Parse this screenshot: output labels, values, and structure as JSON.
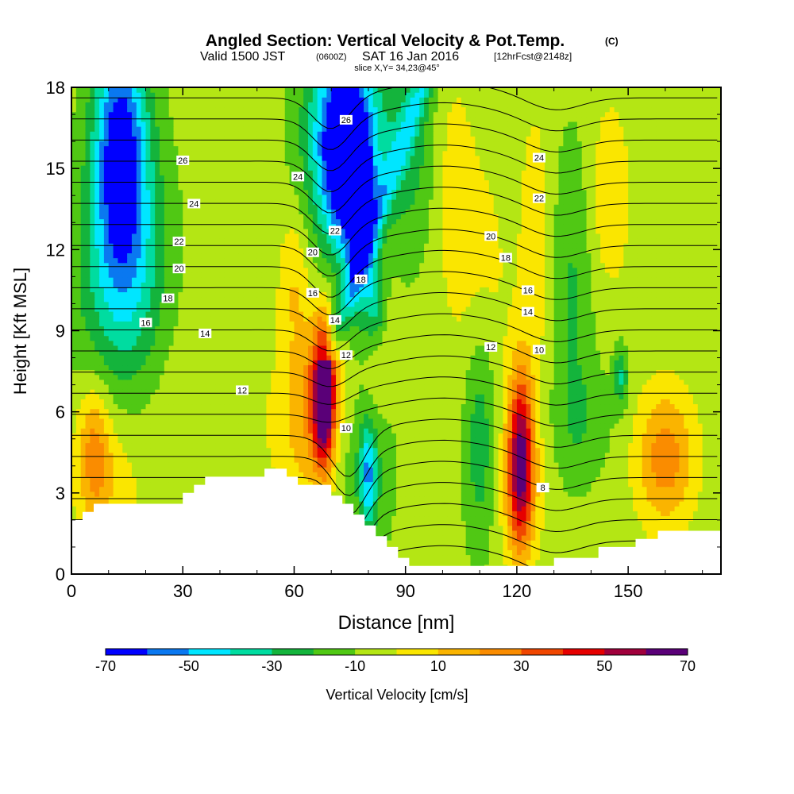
{
  "chart_data": {
    "type": "heatmap",
    "title": "Angled Section: Vertical Velocity & Pot.Temp.",
    "title_unit": "(C)",
    "subtitle_a": "Valid 1500 JST",
    "subtitle_b": "(0600Z)",
    "subtitle_c": "SAT 16 Jan 2016",
    "subtitle_d": "[12hrFcst@2148z]",
    "slice_label": "slice X,Y= 34,23@45°",
    "xlabel": "Distance [nm]",
    "ylabel": "Height [Kft MSL]",
    "xlim": [
      0,
      175
    ],
    "ylim": [
      0,
      18
    ],
    "x_ticks": [
      0,
      30,
      60,
      90,
      120,
      150
    ],
    "y_ticks": [
      0,
      3,
      6,
      9,
      12,
      15,
      18
    ],
    "colorbar": {
      "label": "Vertical Velocity [cm/s]",
      "tick_labels": [
        -70,
        -50,
        -30,
        -10,
        10,
        30,
        50,
        70
      ],
      "bounds": [
        -70,
        -60,
        -50,
        -40,
        -30,
        -20,
        -10,
        0,
        10,
        20,
        30,
        40,
        50,
        60,
        70
      ],
      "colors": [
        "#0000ff",
        "#0a78f0",
        "#00e6ff",
        "#00dca0",
        "#14b43c",
        "#50c814",
        "#b4e614",
        "#fae600",
        "#fab400",
        "#fa8c00",
        "#f04600",
        "#e60000",
        "#a0003c",
        "#5a0078"
      ]
    },
    "isentrope_labels": [
      {
        "value": 26,
        "x": 30,
        "y": 15.3
      },
      {
        "value": 26,
        "x": 74,
        "y": 16.8
      },
      {
        "value": 24,
        "x": 33,
        "y": 13.7
      },
      {
        "value": 24,
        "x": 61,
        "y": 14.7
      },
      {
        "value": 24,
        "x": 126,
        "y": 15.4
      },
      {
        "value": 22,
        "x": 29,
        "y": 12.3
      },
      {
        "value": 22,
        "x": 71,
        "y": 12.7
      },
      {
        "value": 22,
        "x": 126,
        "y": 13.9
      },
      {
        "value": 20,
        "x": 29,
        "y": 11.3
      },
      {
        "value": 20,
        "x": 65,
        "y": 11.9
      },
      {
        "value": 20,
        "x": 113,
        "y": 12.5
      },
      {
        "value": 18,
        "x": 26,
        "y": 10.2
      },
      {
        "value": 18,
        "x": 78,
        "y": 10.9
      },
      {
        "value": 18,
        "x": 117,
        "y": 11.7
      },
      {
        "value": 16,
        "x": 20,
        "y": 9.3
      },
      {
        "value": 16,
        "x": 65,
        "y": 10.4
      },
      {
        "value": 16,
        "x": 123,
        "y": 10.5
      },
      {
        "value": 14,
        "x": 36,
        "y": 8.9
      },
      {
        "value": 14,
        "x": 71,
        "y": 9.4
      },
      {
        "value": 14,
        "x": 123,
        "y": 9.7
      },
      {
        "value": 12,
        "x": 46,
        "y": 6.8
      },
      {
        "value": 12,
        "x": 74,
        "y": 8.1
      },
      {
        "value": 12,
        "x": 113,
        "y": 8.4
      },
      {
        "value": 10,
        "x": 74,
        "y": 5.4
      },
      {
        "value": 10,
        "x": 126,
        "y": 8.3
      },
      {
        "value": 8,
        "x": 127,
        "y": 3.2
      }
    ],
    "terrain": [
      [
        0,
        2.0
      ],
      [
        3,
        2.0
      ],
      [
        3,
        2.3
      ],
      [
        6,
        2.3
      ],
      [
        6,
        2.6
      ],
      [
        30,
        2.6
      ],
      [
        30,
        3.0
      ],
      [
        33,
        3.0
      ],
      [
        33,
        3.3
      ],
      [
        36,
        3.3
      ],
      [
        36,
        3.6
      ],
      [
        52,
        3.6
      ],
      [
        52,
        3.9
      ],
      [
        58,
        3.9
      ],
      [
        58,
        3.6
      ],
      [
        61,
        3.6
      ],
      [
        61,
        3.3
      ],
      [
        70,
        3.3
      ],
      [
        70,
        2.9
      ],
      [
        73,
        2.9
      ],
      [
        73,
        2.6
      ],
      [
        76,
        2.6
      ],
      [
        76,
        2.2
      ],
      [
        79,
        2.2
      ],
      [
        79,
        1.8
      ],
      [
        82,
        1.8
      ],
      [
        82,
        1.4
      ],
      [
        85,
        1.4
      ],
      [
        85,
        1.0
      ],
      [
        88,
        1.0
      ],
      [
        88,
        0.6
      ],
      [
        91,
        0.6
      ],
      [
        91,
        0.3
      ],
      [
        130,
        0.3
      ],
      [
        130,
        0.6
      ],
      [
        142,
        0.6
      ],
      [
        142,
        1.0
      ],
      [
        152,
        1.0
      ],
      [
        152,
        1.3
      ],
      [
        158,
        1.3
      ],
      [
        158,
        1.6
      ],
      [
        175,
        1.6
      ]
    ],
    "w_features": [
      {
        "x": 68,
        "z": 6.6,
        "sx": 2.0,
        "sz": 1.8,
        "w": 80
      },
      {
        "x": 63,
        "z": 5.9,
        "sx": 4.5,
        "sz": 2.4,
        "w": 20
      },
      {
        "x": 70,
        "z": 7.3,
        "sx": 5.0,
        "sz": 1.7,
        "w": 12
      },
      {
        "x": 121,
        "z": 4.3,
        "sx": 2.4,
        "sz": 2.3,
        "w": 65
      },
      {
        "x": 121,
        "z": 3.0,
        "sx": 4.5,
        "sz": 2.0,
        "w": 12
      },
      {
        "x": 6,
        "z": 4.6,
        "sx": 3.0,
        "sz": 1.8,
        "w": 26
      },
      {
        "x": 160,
        "z": 4.3,
        "sx": 5.5,
        "sz": 1.8,
        "w": 32
      },
      {
        "x": 10,
        "z": 3.4,
        "sx": 6.0,
        "sz": 2.0,
        "w": 12
      },
      {
        "x": 13,
        "z": 16.0,
        "sx": 5.0,
        "sz": 3.0,
        "w": -55
      },
      {
        "x": 16,
        "z": 12.0,
        "sx": 7.0,
        "sz": 3.5,
        "w": -25
      },
      {
        "x": 10,
        "z": 10.5,
        "sx": 8.5,
        "sz": 3.0,
        "w": -15
      },
      {
        "x": 74,
        "z": 15.5,
        "sx": 5.0,
        "sz": 2.4,
        "w": -60
      },
      {
        "x": 71,
        "z": 16.5,
        "sx": 7.0,
        "sz": 3.0,
        "w": -28
      },
      {
        "x": 78,
        "z": 12.5,
        "sx": 3.0,
        "sz": 2.6,
        "w": -35
      },
      {
        "x": 82,
        "z": 10.0,
        "sx": 2.0,
        "sz": 1.2,
        "w": -30
      },
      {
        "x": 80,
        "z": 3.7,
        "sx": 1.6,
        "sz": 1.3,
        "w": -35
      },
      {
        "x": 80,
        "z": 4.2,
        "sx": 5.0,
        "sz": 2.5,
        "w": -15
      },
      {
        "x": 90,
        "z": 16.0,
        "sx": 7.0,
        "sz": 3.0,
        "w": -20
      },
      {
        "x": 110,
        "z": 5.2,
        "sx": 3.0,
        "sz": 3.0,
        "w": -22
      },
      {
        "x": 135,
        "z": 10.5,
        "sx": 4.0,
        "sz": 4.0,
        "w": -15
      },
      {
        "x": 148,
        "z": 7.3,
        "sx": 1.4,
        "sz": 0.8,
        "w": -25
      },
      {
        "x": 138,
        "z": 5.6,
        "sx": 6.0,
        "sz": 1.5,
        "w": -10
      },
      {
        "x": 60,
        "z": 11.0,
        "sx": 3.0,
        "sz": 1.8,
        "w": 15
      },
      {
        "x": 82,
        "z": 9.0,
        "sx": 3.0,
        "sz": 2.5,
        "w": 15
      },
      {
        "x": 102,
        "z": 15.0,
        "sx": 4.0,
        "sz": 3.0,
        "w": 12
      },
      {
        "x": 125,
        "z": 12.0,
        "sx": 3.0,
        "sz": 4.0,
        "w": 12
      },
      {
        "x": 145,
        "z": 14.0,
        "sx": 4.0,
        "sz": 2.5,
        "w": 14
      },
      {
        "x": 110,
        "z": 11.0,
        "sx": 6.0,
        "sz": 3.5,
        "w": 10
      },
      {
        "x": 40,
        "z": 5.5,
        "sx": 18.0,
        "sz": 2.5,
        "w": 6
      }
    ],
    "background_w": -6
  }
}
